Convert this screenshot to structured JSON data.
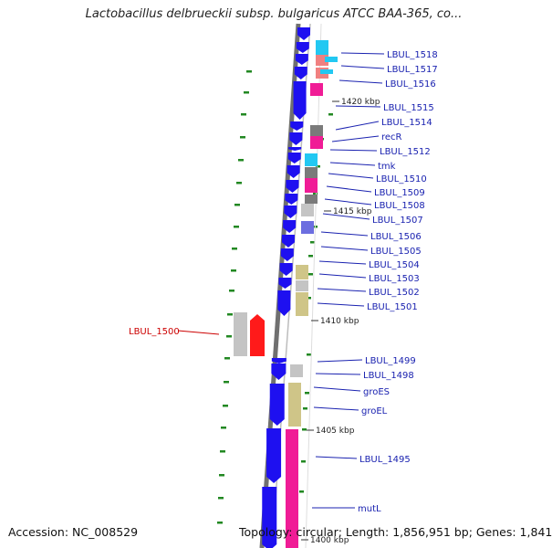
{
  "title": "Lactobacillus delbrueckii subsp. bulgaricus ATCC BAA-365, co...",
  "footer": {
    "accession": "Accession: NC_008529",
    "topology": "Topology: circular; Length: 1,856,951 bp; Genes: 1,841"
  },
  "colors": {
    "cds_forward": "#1e10f0",
    "gene_label": "#1a22b0",
    "highlight_label": "#cc0000",
    "highlight_gene": "#ff1a1a",
    "backbone": "#707070",
    "tick_dot": "#228822",
    "cyan": "#22c8f2",
    "salmon": "#f08080",
    "magenta": "#f01c96",
    "gray": "#7a7a7a",
    "light_gray": "#c4c4c4",
    "olive": "#cfc588",
    "purple": "#6c6ee0"
  },
  "scale_ticks": [
    "1420 kbp",
    "1415 kbp",
    "1410 kbp",
    "1405 kbp",
    "1400 kbp"
  ],
  "gene_labels": [
    "LBUL_1518",
    "LBUL_1517",
    "LBUL_1516",
    "LBUL_1515",
    "LBUL_1514",
    "recR",
    "LBUL_1512",
    "tmk",
    "LBUL_1510",
    "LBUL_1509",
    "LBUL_1508",
    "LBUL_1507",
    "LBUL_1506",
    "LBUL_1505",
    "LBUL_1504",
    "LBUL_1503",
    "LBUL_1502",
    "LBUL_1501",
    "LBUL_1499",
    "LBUL_1498",
    "groES",
    "groEL",
    "LBUL_1495",
    "mutL"
  ],
  "highlighted_gene": "LBUL_1500"
}
